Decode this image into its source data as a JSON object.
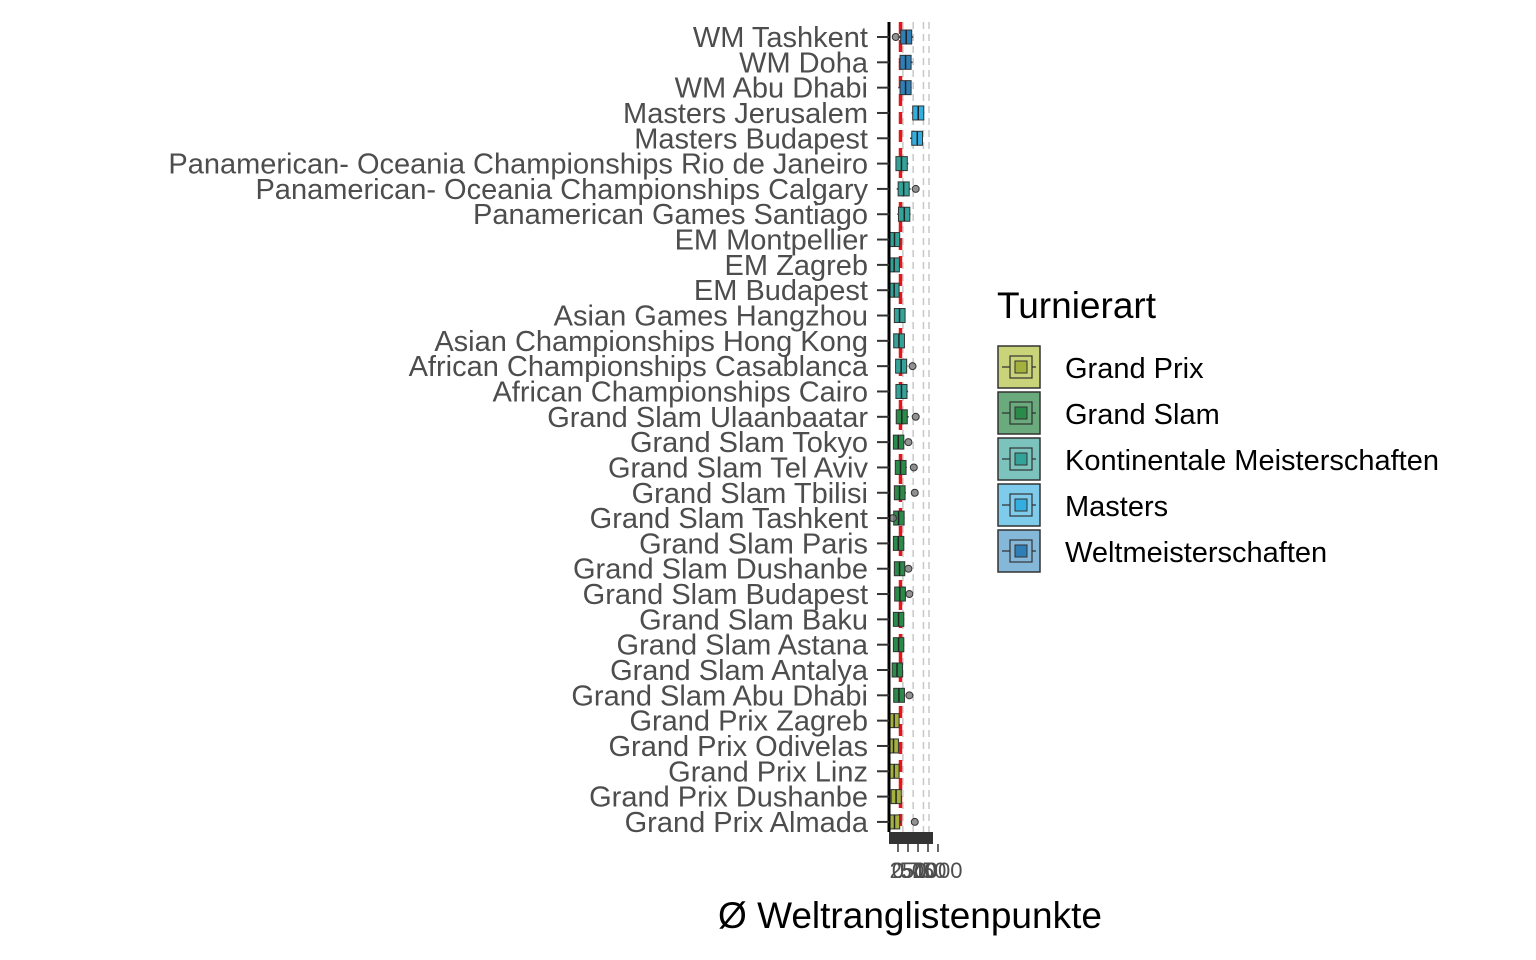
{
  "chart_data": {
    "type": "boxplot",
    "orientation": "horizontal",
    "title": "",
    "xlabel": "Ø Weltranglistenpunkte",
    "ylabel": "",
    "xlim": [
      0,
      1200
    ],
    "xticks": [
      "0",
      "250",
      "500",
      "750",
      "1000"
    ],
    "reference_line": {
      "value": 300,
      "color": "#e8141a",
      "style": "dashed"
    },
    "grid": "vertical dashed",
    "legend": {
      "title": "Turnierart",
      "placement": "right",
      "items": [
        {
          "name": "Grand Prix",
          "fill": "#c9d37a",
          "inner": "#a4b13e"
        },
        {
          "name": "Grand Slam",
          "fill": "#6aaa7c",
          "inner": "#2a8a4a"
        },
        {
          "name": "Kontinentale Meisterschaften",
          "fill": "#7cc3bd",
          "inner": "#33a39a"
        },
        {
          "name": "Masters",
          "fill": "#7fcbeb",
          "inner": "#33aee0"
        },
        {
          "name": "Weltmeisterschaften",
          "fill": "#84b7d8",
          "inner": "#2e7fb7"
        }
      ]
    },
    "categories": [
      "WM Tashkent",
      "WM Doha",
      "WM Abu Dhabi",
      "Masters Jerusalem",
      "Masters Budapest",
      "Panamerican- Oceania Championships Rio de Janeiro",
      "Panamerican- Oceania Championships Calgary",
      "Panamerican Games Santiago",
      "EM Montpellier",
      "EM Zagreb",
      "EM Budapest",
      "Asian Games Hangzhou",
      "Asian Championships Hong Kong",
      "African Championships Casablanca",
      "African Championships Cairo",
      "Grand Slam Ulaanbaatar",
      "Grand Slam Tokyo",
      "Grand Slam Tel Aviv",
      "Grand Slam Tbilisi",
      "Grand Slam Tashkent",
      "Grand Slam Paris",
      "Grand Slam Dushanbe",
      "Grand Slam Budapest",
      "Grand Slam Baku",
      "Grand Slam Astana",
      "Grand Slam Antalya",
      "Grand Slam Abu Dhabi",
      "Grand Prix Zagreb",
      "Grand Prix Odivelas",
      "Grand Prix Linz",
      "Grand Prix Dushanbe",
      "Grand Prix Almada"
    ],
    "series": [
      {
        "category": "WM Tashkent",
        "group": "Weltmeisterschaften",
        "min": 200,
        "q1": 400,
        "median": 480,
        "q3": 560,
        "max": 700,
        "outliers": [
          150
        ]
      },
      {
        "category": "WM Doha",
        "group": "Weltmeisterschaften",
        "min": 250,
        "q1": 380,
        "median": 460,
        "q3": 540,
        "max": 680,
        "outliers": []
      },
      {
        "category": "WM Abu Dhabi",
        "group": "Weltmeisterschaften",
        "min": 230,
        "q1": 380,
        "median": 460,
        "q3": 540,
        "max": 650,
        "outliers": []
      },
      {
        "category": "Masters Jerusalem",
        "group": "Masters",
        "min": 650,
        "q1": 780,
        "median": 860,
        "q3": 940,
        "max": 1050,
        "outliers": []
      },
      {
        "category": "Masters Budapest",
        "group": "Masters",
        "min": 600,
        "q1": 750,
        "median": 830,
        "q3": 900,
        "max": 1000,
        "outliers": []
      },
      {
        "category": "Panamerican- Oceania Championships Rio de Janeiro",
        "group": "Kontinentale Meisterschaften",
        "min": 150,
        "q1": 250,
        "median": 330,
        "q3": 420,
        "max": 550,
        "outliers": []
      },
      {
        "category": "Panamerican- Oceania Championships Calgary",
        "group": "Kontinentale Meisterschaften",
        "min": 180,
        "q1": 320,
        "median": 400,
        "q3": 480,
        "max": 620,
        "outliers": [
          780
        ]
      },
      {
        "category": "Panamerican Games Santiago",
        "group": "Kontinentale Meisterschaften",
        "min": 200,
        "q1": 330,
        "median": 420,
        "q3": 500,
        "max": 620,
        "outliers": []
      },
      {
        "category": "EM Montpellier",
        "group": "Kontinentale Meisterschaften",
        "min": 30,
        "q1": 60,
        "median": 110,
        "q3": 180,
        "max": 300,
        "outliers": []
      },
      {
        "category": "EM Zagreb",
        "group": "Kontinentale Meisterschaften",
        "min": 20,
        "q1": 50,
        "median": 100,
        "q3": 170,
        "max": 280,
        "outliers": []
      },
      {
        "category": "EM Budapest",
        "group": "Kontinentale Meisterschaften",
        "min": 20,
        "q1": 50,
        "median": 100,
        "q3": 160,
        "max": 270,
        "outliers": []
      },
      {
        "category": "Asian Games Hangzhou",
        "group": "Kontinentale Meisterschaften",
        "min": 120,
        "q1": 200,
        "median": 270,
        "q3": 350,
        "max": 450,
        "outliers": []
      },
      {
        "category": "Asian Championships Hong Kong",
        "group": "Kontinentale Meisterschaften",
        "min": 100,
        "q1": 180,
        "median": 250,
        "q3": 330,
        "max": 420,
        "outliers": []
      },
      {
        "category": "African Championships Casablanca",
        "group": "Kontinentale Meisterschaften",
        "min": 150,
        "q1": 240,
        "median": 320,
        "q3": 400,
        "max": 520,
        "outliers": [
          680
        ]
      },
      {
        "category": "African Championships Cairo",
        "group": "Kontinentale Meisterschaften",
        "min": 150,
        "q1": 250,
        "median": 330,
        "q3": 410,
        "max": 540,
        "outliers": []
      },
      {
        "category": "Grand Slam Ulaanbaatar",
        "group": "Grand Slam",
        "min": 160,
        "q1": 260,
        "median": 340,
        "q3": 420,
        "max": 560,
        "outliers": [
          780
        ]
      },
      {
        "category": "Grand Slam Tokyo",
        "group": "Grand Slam",
        "min": 100,
        "q1": 170,
        "median": 230,
        "q3": 310,
        "max": 420,
        "outliers": [
          550
        ]
      },
      {
        "category": "Grand Slam Tel Aviv",
        "group": "Grand Slam",
        "min": 140,
        "q1": 230,
        "median": 300,
        "q3": 380,
        "max": 500,
        "outliers": [
          720
        ]
      },
      {
        "category": "Grand Slam Tbilisi",
        "group": "Grand Slam",
        "min": 120,
        "q1": 200,
        "median": 270,
        "q3": 350,
        "max": 470,
        "outliers": [
          750
        ]
      },
      {
        "category": "Grand Slam Tashkent",
        "group": "Grand Slam",
        "min": 100,
        "q1": 180,
        "median": 240,
        "q3": 320,
        "max": 430,
        "outliers": [
          60
        ]
      },
      {
        "category": "Grand Slam Paris",
        "group": "Grand Slam",
        "min": 100,
        "q1": 170,
        "median": 230,
        "q3": 310,
        "max": 420,
        "outliers": []
      },
      {
        "category": "Grand Slam Dushanbe",
        "group": "Grand Slam",
        "min": 120,
        "q1": 200,
        "median": 270,
        "q3": 340,
        "max": 460,
        "outliers": [
          550
        ]
      },
      {
        "category": "Grand Slam Budapest",
        "group": "Grand Slam",
        "min": 130,
        "q1": 210,
        "median": 280,
        "q3": 360,
        "max": 470,
        "outliers": [
          580
        ]
      },
      {
        "category": "Grand Slam Baku",
        "group": "Grand Slam",
        "min": 100,
        "q1": 170,
        "median": 240,
        "q3": 310,
        "max": 420,
        "outliers": []
      },
      {
        "category": "Grand Slam Astana",
        "group": "Grand Slam",
        "min": 100,
        "q1": 170,
        "median": 240,
        "q3": 310,
        "max": 420,
        "outliers": []
      },
      {
        "category": "Grand Slam Antalya",
        "group": "Grand Slam",
        "min": 70,
        "q1": 130,
        "median": 190,
        "q3": 270,
        "max": 380,
        "outliers": []
      },
      {
        "category": "Grand Slam Abu Dhabi",
        "group": "Grand Slam",
        "min": 100,
        "q1": 180,
        "median": 250,
        "q3": 330,
        "max": 440,
        "outliers": [
          580
        ]
      },
      {
        "category": "Grand Prix Zagreb",
        "group": "Grand Prix",
        "min": 20,
        "q1": 50,
        "median": 100,
        "q3": 160,
        "max": 260,
        "outliers": []
      },
      {
        "category": "Grand Prix Odivelas",
        "group": "Grand Prix",
        "min": 10,
        "q1": 40,
        "median": 80,
        "q3": 140,
        "max": 230,
        "outliers": []
      },
      {
        "category": "Grand Prix Linz",
        "group": "Grand Prix",
        "min": 20,
        "q1": 50,
        "median": 100,
        "q3": 160,
        "max": 260,
        "outliers": []
      },
      {
        "category": "Grand Prix Dushanbe",
        "group": "Grand Prix",
        "min": 40,
        "q1": 100,
        "median": 160,
        "q3": 230,
        "max": 340,
        "outliers": []
      },
      {
        "category": "Grand Prix Almada",
        "group": "Grand Prix",
        "min": 20,
        "q1": 60,
        "median": 110,
        "q3": 180,
        "max": 320,
        "outliers": [
          750
        ]
      }
    ]
  }
}
